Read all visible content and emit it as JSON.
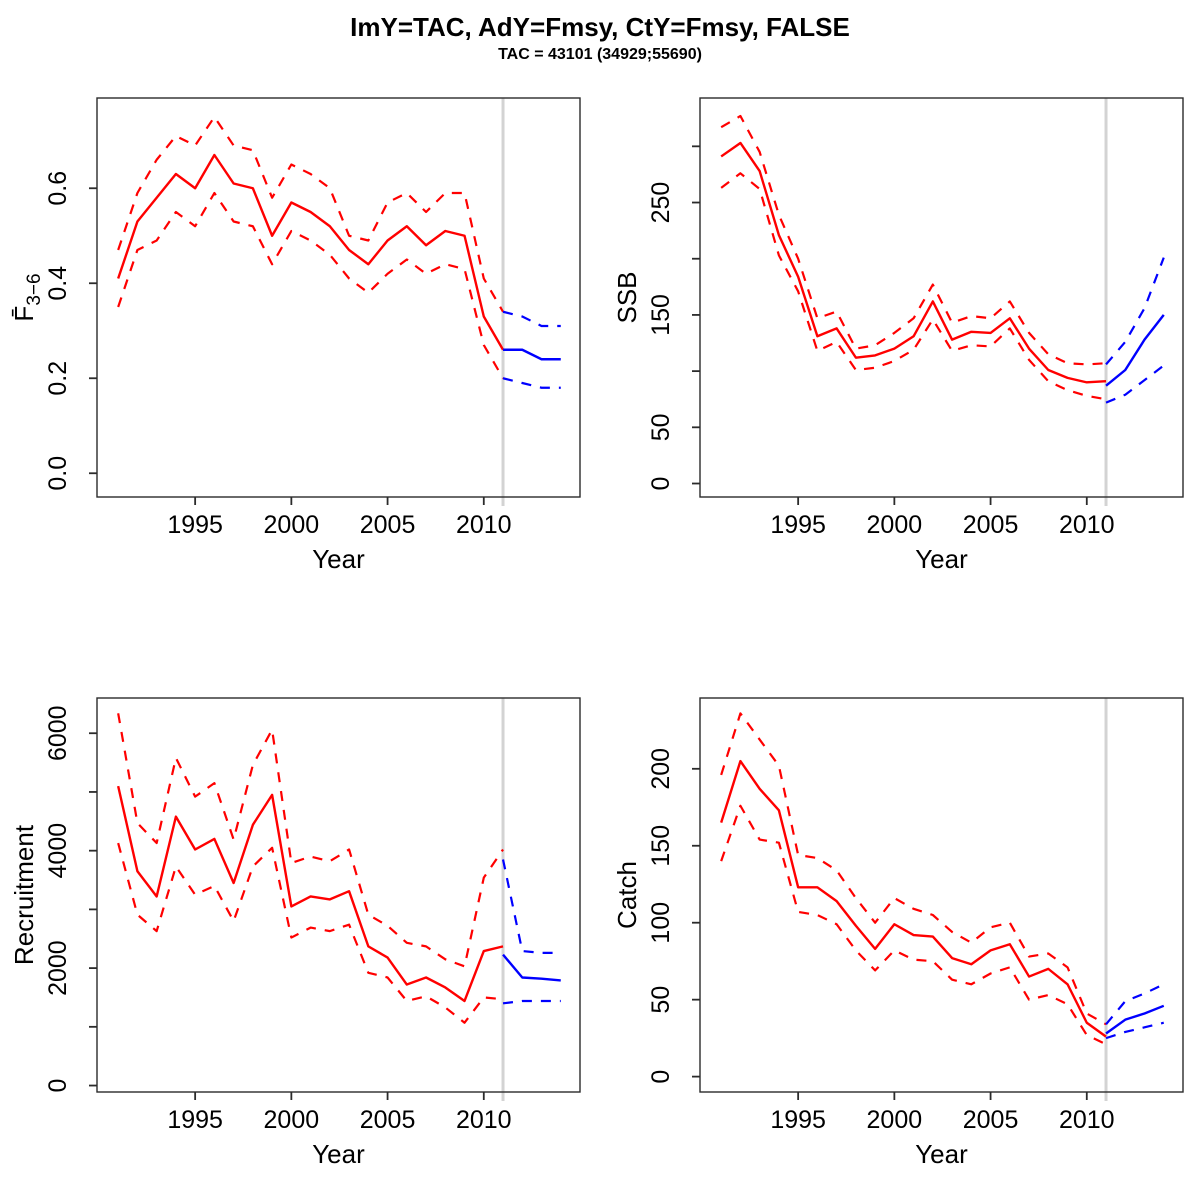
{
  "header": {
    "title": "ImY=TAC, AdY=Fmsy, CtY=Fmsy, FALSE",
    "subtitle": "TAC = 43101 (34929;55690)"
  },
  "colors": {
    "historic_line": "#ff0000",
    "forecast_line": "#0000ff",
    "divider_line": "#d3d3d3",
    "axis_line": "#2b2b2b",
    "text": "#000000",
    "background": "#ffffff"
  },
  "divider_year": 2011,
  "x_axis": {
    "label": "Year",
    "ticks": [
      1995,
      2000,
      2005,
      2010
    ],
    "range": [
      1989.9,
      2015.0
    ]
  },
  "years_historic": [
    1991,
    1992,
    1993,
    1994,
    1995,
    1996,
    1997,
    1998,
    1999,
    2000,
    2001,
    2002,
    2003,
    2004,
    2005,
    2006,
    2007,
    2008,
    2009,
    2010,
    2011
  ],
  "years_forecast": [
    2011,
    2012,
    2013,
    2014
  ],
  "chart_data": [
    {
      "id": "fbar",
      "type": "line",
      "ylabel": "F̄3−6",
      "ylabel_base": "F̄",
      "ylabel_sub": "3−6",
      "xlabel": "Year",
      "ylim": [
        -0.05,
        0.79
      ],
      "yticks": [
        0,
        0.2,
        0.4,
        0.6
      ],
      "ytick_labels": [
        "0.0",
        "0.2",
        "0.4",
        "0.6"
      ],
      "historic": {
        "median": [
          0.41,
          0.53,
          0.58,
          0.63,
          0.6,
          0.67,
          0.61,
          0.6,
          0.5,
          0.57,
          0.55,
          0.52,
          0.47,
          0.44,
          0.49,
          0.52,
          0.48,
          0.51,
          0.5,
          0.33,
          0.26
        ],
        "upper": [
          0.47,
          0.59,
          0.66,
          0.71,
          0.69,
          0.75,
          0.69,
          0.68,
          0.58,
          0.65,
          0.63,
          0.6,
          0.5,
          0.49,
          0.57,
          0.59,
          0.55,
          0.59,
          0.59,
          0.41,
          0.34
        ],
        "lower": [
          0.35,
          0.47,
          0.49,
          0.55,
          0.52,
          0.59,
          0.53,
          0.52,
          0.44,
          0.51,
          0.49,
          0.46,
          0.41,
          0.38,
          0.42,
          0.45,
          0.42,
          0.44,
          0.43,
          0.27,
          0.2
        ]
      },
      "forecast": {
        "median": [
          0.26,
          0.26,
          0.24,
          0.24
        ],
        "upper": [
          0.34,
          0.33,
          0.31,
          0.31
        ],
        "lower": [
          0.2,
          0.19,
          0.18,
          0.18
        ]
      }
    },
    {
      "id": "ssb",
      "type": "line",
      "ylabel": "SSB",
      "ylabel_base": "SSB",
      "ylabel_sub": "",
      "xlabel": "Year",
      "ylim": [
        -12,
        343
      ],
      "yticks": [
        0,
        50,
        100,
        150,
        200,
        250,
        300
      ],
      "ytick_labels": [
        "0",
        "50",
        "",
        "150",
        "",
        "250",
        ""
      ],
      "historic": {
        "median": [
          291,
          303,
          278,
          221,
          184,
          131,
          138,
          112,
          114,
          120,
          131,
          162,
          128,
          135,
          134,
          147,
          120,
          101,
          94,
          90,
          91
        ],
        "upper": [
          317,
          327,
          295,
          239,
          200,
          147,
          153,
          120,
          123,
          134,
          147,
          177,
          143,
          149,
          147,
          162,
          134,
          115,
          107,
          106,
          107
        ],
        "lower": [
          263,
          276,
          262,
          203,
          171,
          118,
          126,
          101,
          103,
          109,
          119,
          146,
          118,
          123,
          122,
          138,
          110,
          91,
          83,
          78,
          75
        ]
      },
      "forecast": {
        "median": [
          87,
          101,
          128,
          150
        ],
        "upper": [
          106,
          126,
          156,
          201
        ],
        "lower": [
          72,
          79,
          92,
          105
        ]
      }
    },
    {
      "id": "recruitment",
      "type": "line",
      "ylabel": "Recruitment",
      "ylabel_base": "Recruitment",
      "ylabel_sub": "",
      "xlabel": "Year",
      "ylim": [
        -110,
        6600
      ],
      "yticks": [
        0,
        1000,
        2000,
        3000,
        4000,
        5000,
        6000
      ],
      "ytick_labels": [
        "0",
        "",
        "2000",
        "",
        "4000",
        "",
        "6000"
      ],
      "historic": {
        "median": [
          5100,
          3650,
          3220,
          4580,
          4020,
          4200,
          3450,
          4440,
          4950,
          3050,
          3220,
          3170,
          3310,
          2370,
          2180,
          1720,
          1840,
          1670,
          1440,
          2290,
          2370
        ],
        "upper": [
          6340,
          4470,
          4130,
          5580,
          4920,
          5150,
          4190,
          5460,
          6060,
          3790,
          3900,
          3820,
          4020,
          2910,
          2720,
          2430,
          2370,
          2150,
          2030,
          3540,
          4020
        ],
        "lower": [
          4130,
          2910,
          2630,
          3730,
          3250,
          3400,
          2800,
          3730,
          4050,
          2520,
          2690,
          2630,
          2740,
          1920,
          1840,
          1440,
          1520,
          1330,
          1070,
          1500,
          1470
        ]
      },
      "forecast": {
        "median": [
          2230,
          1840,
          1820,
          1790
        ],
        "upper": [
          3850,
          2290,
          2260,
          2260
        ],
        "lower": [
          1400,
          1440,
          1440,
          1440
        ]
      }
    },
    {
      "id": "catch",
      "type": "line",
      "ylabel": "Catch",
      "ylabel_base": "Catch",
      "ylabel_sub": "",
      "xlabel": "Year",
      "ylim": [
        -10,
        246
      ],
      "yticks": [
        0,
        50,
        100,
        150,
        200
      ],
      "ytick_labels": [
        "0",
        "50",
        "100",
        "150",
        "200"
      ],
      "historic": {
        "median": [
          165,
          205,
          187,
          173,
          123,
          123,
          114,
          98,
          83,
          99,
          92,
          91,
          77,
          73,
          82,
          86,
          65,
          70,
          60,
          35,
          26
        ],
        "upper": [
          196,
          236,
          219,
          202,
          144,
          142,
          134,
          116,
          100,
          116,
          109,
          105,
          94,
          87,
          97,
          100,
          78,
          80,
          71,
          41,
          34
        ],
        "lower": [
          140,
          176,
          154,
          152,
          107,
          105,
          99,
          82,
          69,
          82,
          76,
          75,
          63,
          60,
          67,
          71,
          50,
          53,
          47,
          27,
          21
        ]
      },
      "forecast": {
        "median": [
          28,
          37,
          41,
          46
        ],
        "upper": [
          34,
          49,
          54,
          60
        ],
        "lower": [
          25,
          29,
          32,
          35
        ]
      }
    }
  ]
}
